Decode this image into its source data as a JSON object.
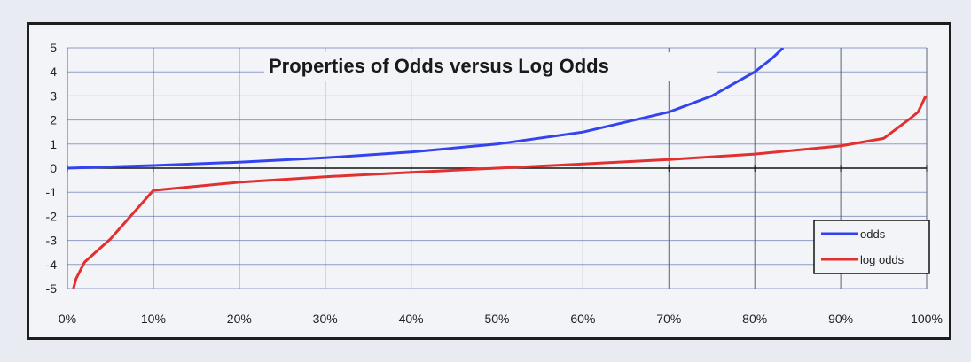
{
  "chart_data": {
    "type": "line",
    "title": "Properties of Odds versus Log Odds",
    "xlabel": "",
    "ylabel": "",
    "xlim": [
      0,
      1
    ],
    "ylim": [
      -5,
      5
    ],
    "x_ticks": [
      "0%",
      "10%",
      "20%",
      "30%",
      "40%",
      "50%",
      "60%",
      "70%",
      "80%",
      "90%",
      "100%"
    ],
    "y_ticks": [
      "5",
      "4",
      "3",
      "2",
      "1",
      "0",
      "-1",
      "-2",
      "-3",
      "-4",
      "-5"
    ],
    "grid": true,
    "legend_position": "bottom-right",
    "series": [
      {
        "name": "odds",
        "color": "#3344ee",
        "x": [
          0.0,
          0.1,
          0.2,
          0.3,
          0.4,
          0.5,
          0.6,
          0.7,
          0.75,
          0.8,
          0.82,
          0.833
        ],
        "y": [
          0.0,
          0.11,
          0.25,
          0.43,
          0.67,
          1.0,
          1.5,
          2.33,
          3.0,
          4.0,
          4.56,
          5.0
        ]
      },
      {
        "name": "log odds",
        "color": "#e23030",
        "x": [
          0.007,
          0.01,
          0.02,
          0.05,
          0.1,
          0.2,
          0.3,
          0.4,
          0.5,
          0.6,
          0.7,
          0.8,
          0.9,
          0.95,
          0.98,
          0.99,
          0.999
        ],
        "y": [
          -5.0,
          -4.6,
          -3.9,
          -2.94,
          -2.2,
          -1.39,
          -0.85,
          -0.41,
          0.0,
          0.41,
          0.85,
          1.39,
          2.2,
          2.94,
          3.9,
          4.6,
          6.9
        ],
        "display_scale": 0.42
      }
    ]
  }
}
